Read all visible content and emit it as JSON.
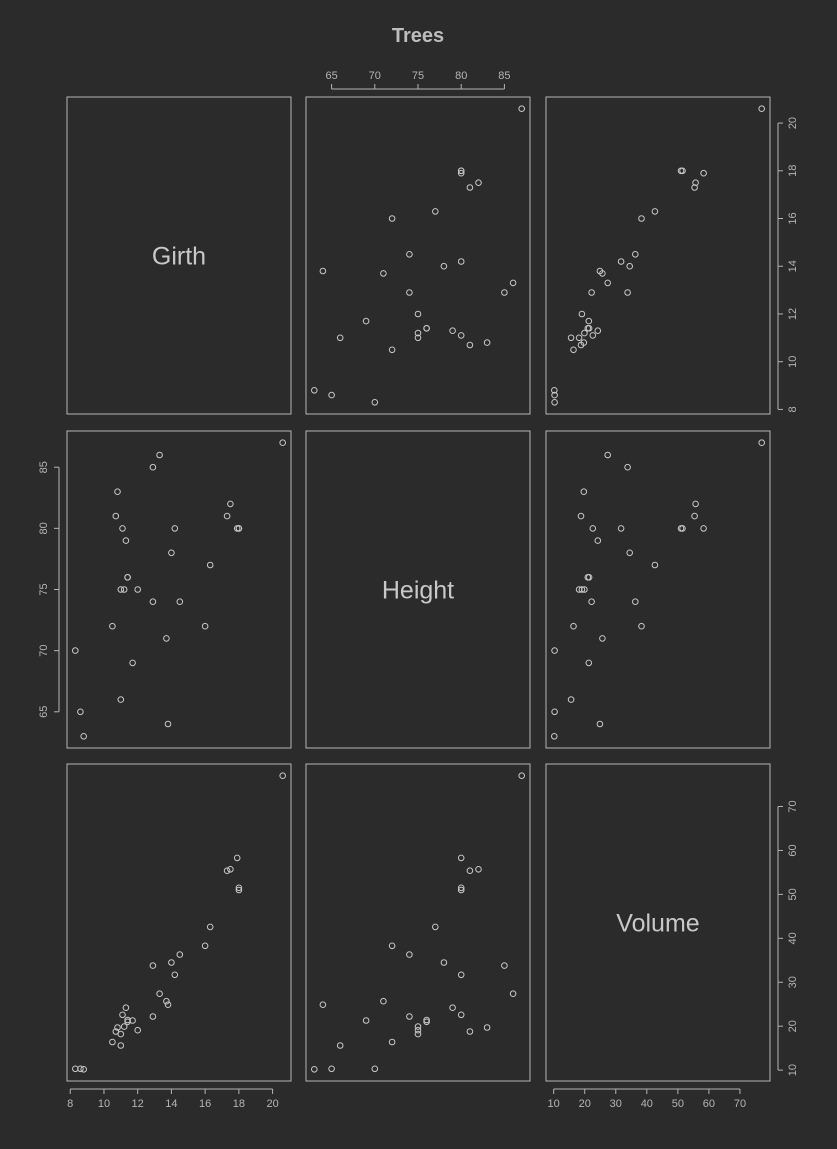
{
  "chart_data": {
    "type": "scatter",
    "title": "Trees",
    "variables": [
      "Girth",
      "Height",
      "Volume"
    ],
    "ranges": {
      "Girth": [
        8.3,
        20.6
      ],
      "Height": [
        63,
        87
      ],
      "Volume": [
        10.2,
        77.0
      ]
    },
    "ticks": {
      "Girth": [
        8,
        10,
        12,
        14,
        16,
        18,
        20
      ],
      "Height": [
        65,
        70,
        75,
        80,
        85
      ],
      "Volume": [
        10,
        20,
        30,
        40,
        50,
        60,
        70
      ]
    },
    "observations": {
      "Girth": [
        8.3,
        8.6,
        8.8,
        10.5,
        10.7,
        10.8,
        11.0,
        11.0,
        11.1,
        11.2,
        11.3,
        11.4,
        11.4,
        11.7,
        12.0,
        12.9,
        12.9,
        13.3,
        13.7,
        13.8,
        14.0,
        14.2,
        14.5,
        16.0,
        16.3,
        17.3,
        17.5,
        17.9,
        18.0,
        18.0,
        20.6
      ],
      "Height": [
        70,
        65,
        63,
        72,
        81,
        83,
        66,
        75,
        80,
        75,
        79,
        76,
        76,
        69,
        75,
        74,
        85,
        86,
        71,
        64,
        78,
        80,
        74,
        72,
        77,
        81,
        82,
        80,
        80,
        80,
        87
      ],
      "Volume": [
        10.3,
        10.3,
        10.2,
        16.4,
        18.8,
        19.7,
        15.6,
        18.2,
        22.6,
        19.9,
        24.2,
        21.0,
        21.4,
        21.3,
        19.1,
        22.2,
        33.8,
        27.4,
        25.7,
        24.9,
        34.5,
        31.7,
        36.3,
        38.3,
        42.6,
        55.4,
        55.7,
        58.3,
        51.5,
        51.0,
        77.0
      ]
    },
    "layout": "3x3 pairs matrix, variable names on diagonal",
    "grid": false
  }
}
